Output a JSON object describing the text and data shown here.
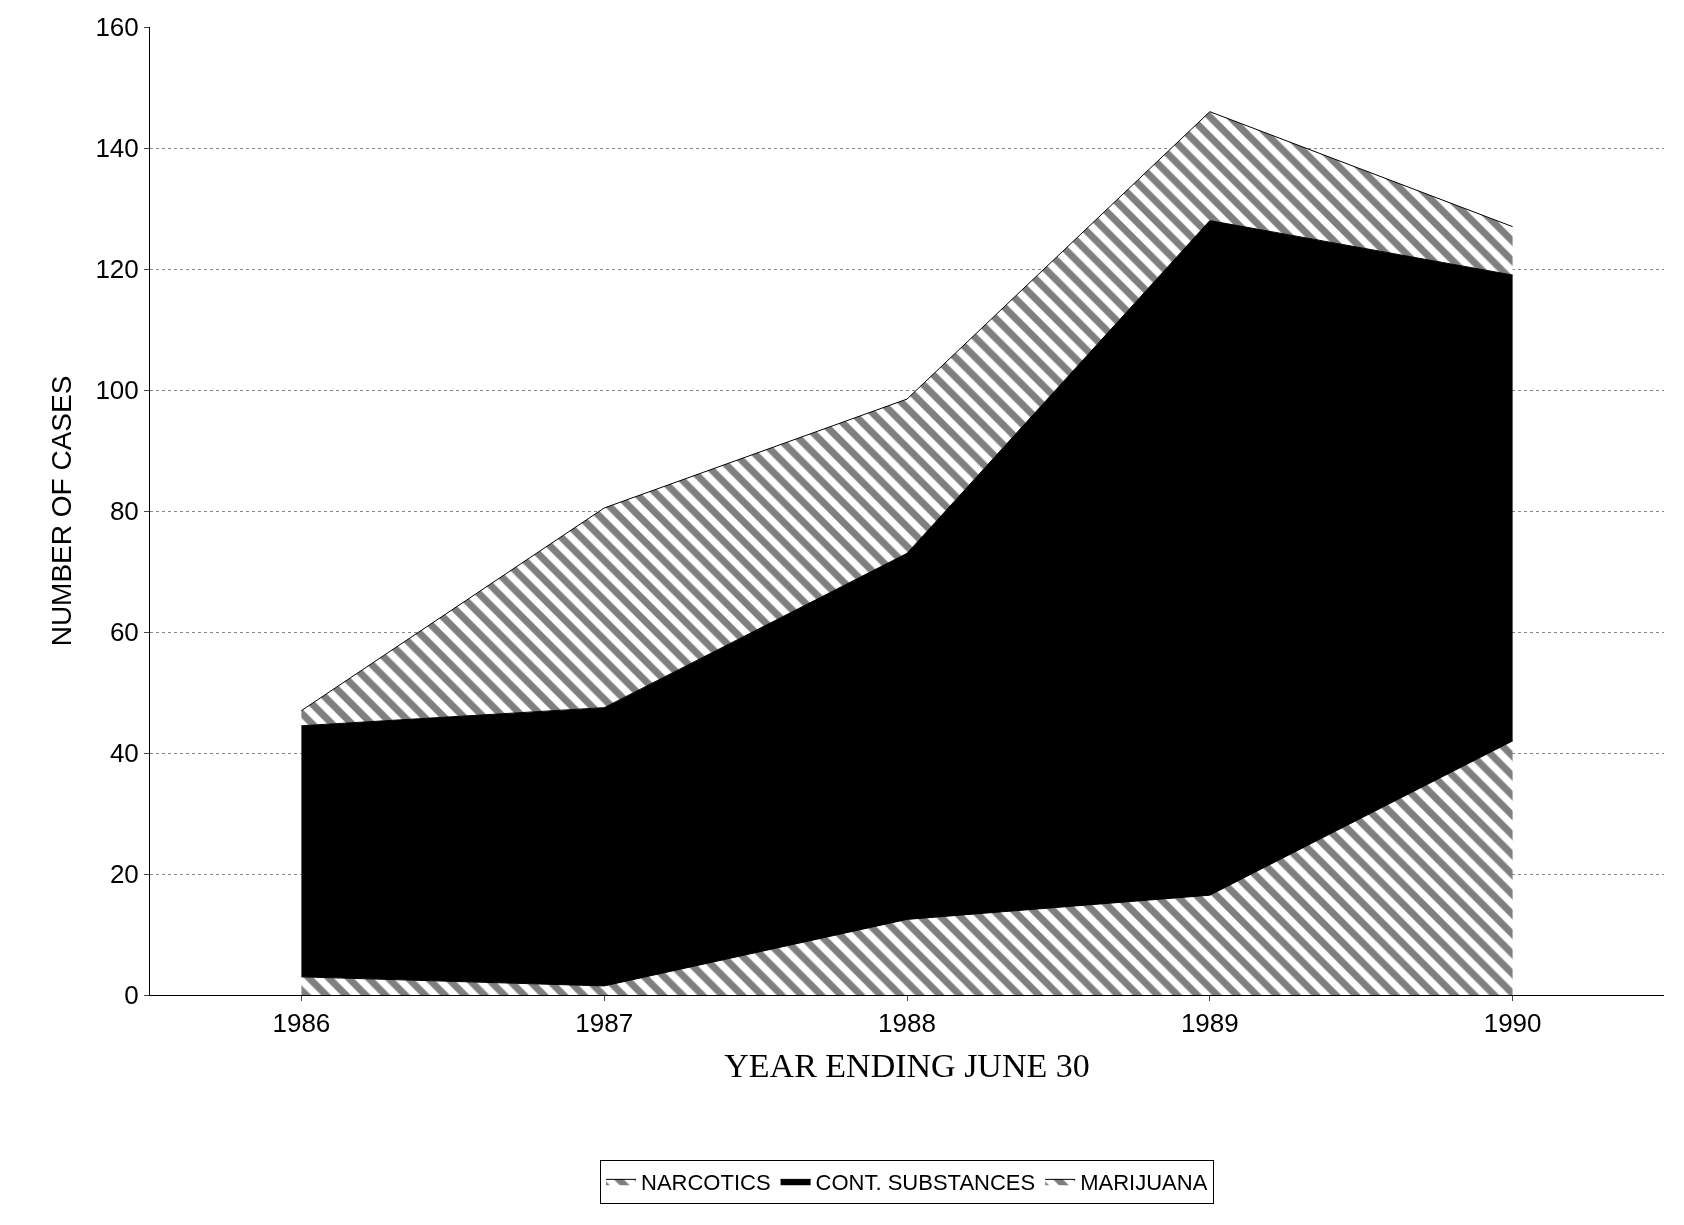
{
  "chart_data": {
    "type": "area",
    "stacked": true,
    "xlabel": "YEAR ENDING JUNE 30",
    "ylabel": "NUMBER OF CASES",
    "x": [
      1986,
      1987,
      1988,
      1989,
      1990
    ],
    "series": [
      {
        "name": "NARCOTICS",
        "color": "#000000",
        "values": [
          3,
          1.5,
          12.5,
          16.5,
          42
        ]
      },
      {
        "name": "CONT. SUBSTANCES",
        "color": "#000000",
        "values": [
          41.5,
          46,
          60.5,
          111.5,
          77
        ]
      },
      {
        "name": "MARIJUANA",
        "color": "#000000",
        "values": [
          2.5,
          33,
          25.5,
          18,
          8
        ]
      }
    ],
    "xlim": [
      1985.5,
      1990.5
    ],
    "xticks": [
      1986,
      1987,
      1988,
      1989,
      1990
    ],
    "ylim": [
      0,
      160
    ],
    "yticks": [
      0,
      20,
      40,
      60,
      80,
      100,
      120,
      140,
      160
    ],
    "grid": "y",
    "legend": "bottom",
    "marker": "none",
    "line_style": "solid"
  }
}
